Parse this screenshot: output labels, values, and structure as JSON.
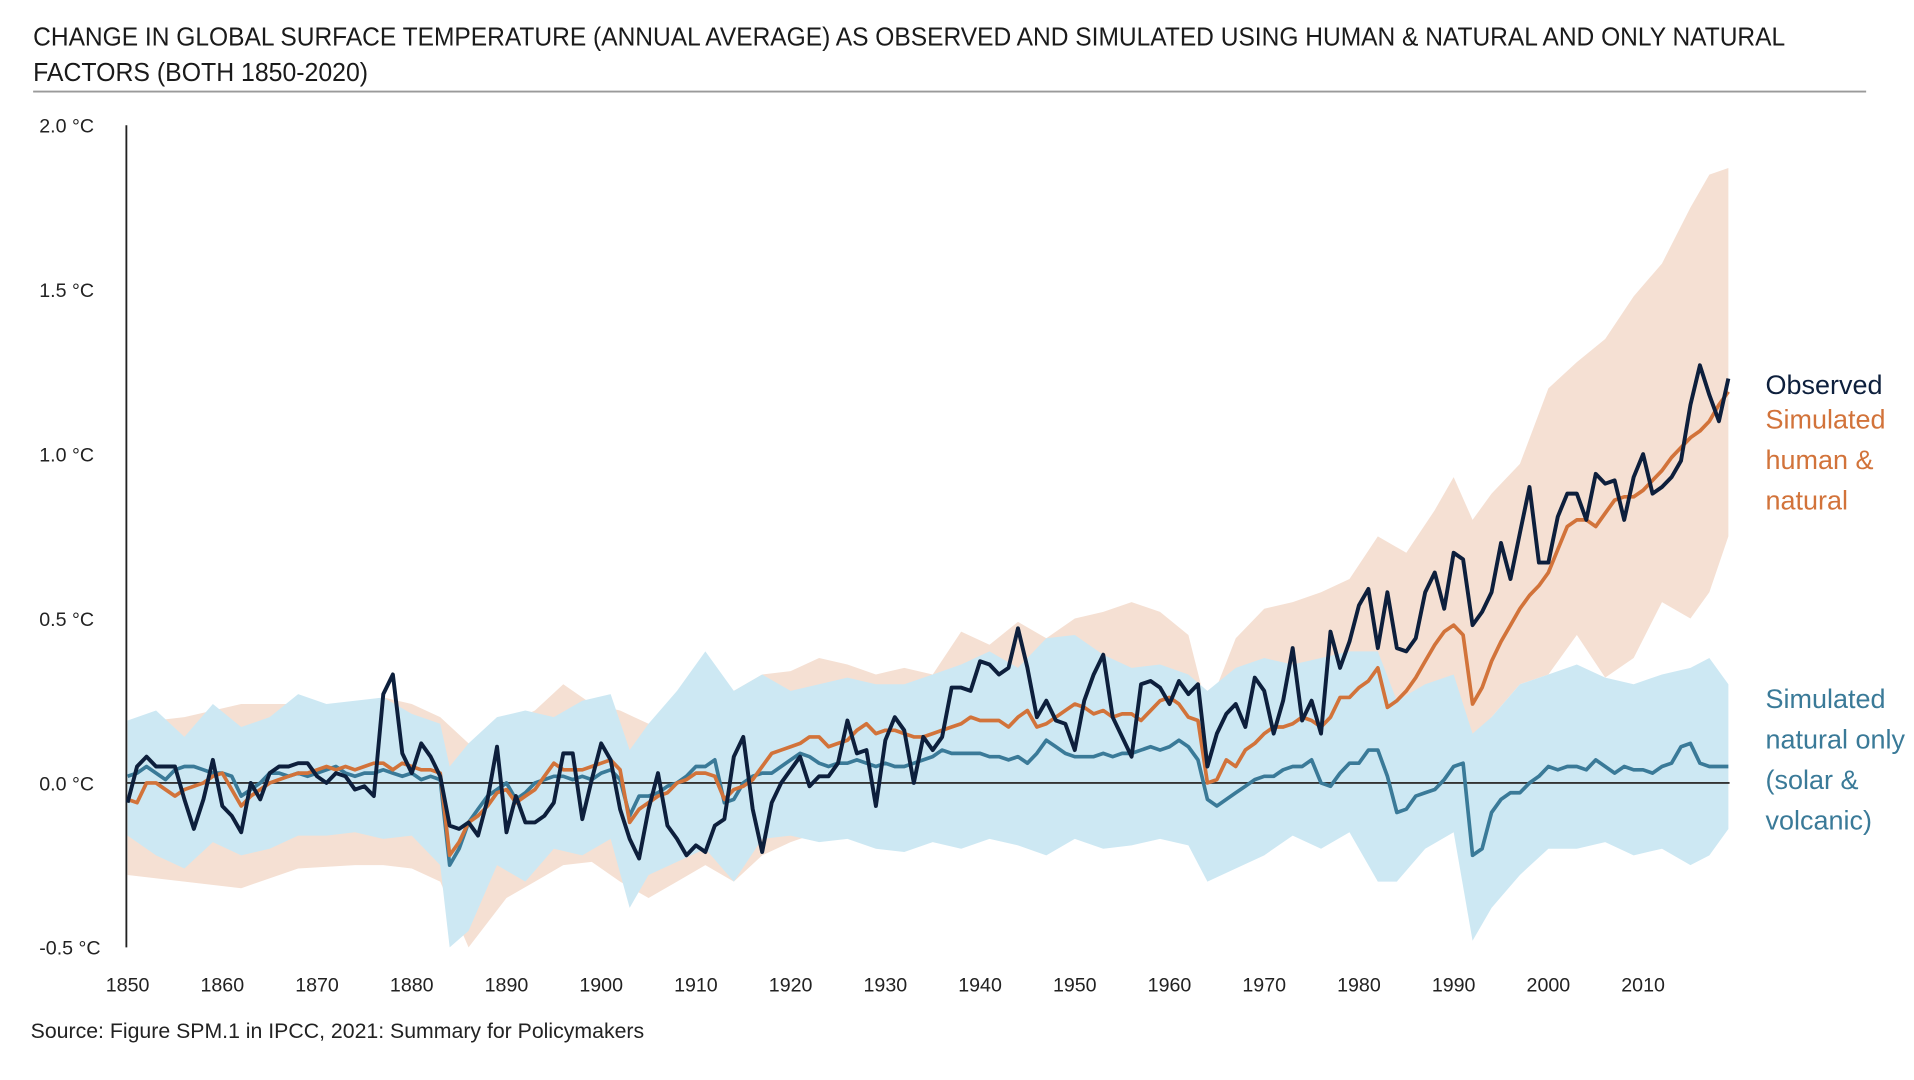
{
  "chart_data": {
    "type": "line",
    "title": [
      "CHANGE IN GLOBAL SURFACE TEMPERATURE (ANNUAL AVERAGE) AS OBSERVED AND SIMULATED USING HUMAN & NATURAL AND ONLY NATURAL",
      "FACTORS (BOTH 1850-2020)"
    ],
    "source": "Source: Figure SPM.1 in IPCC, 2021: Summary for Policymakers",
    "xlim": [
      1850,
      2019
    ],
    "ylim": [
      -0.5,
      2.0
    ],
    "x_ticks": [
      1850,
      1860,
      1870,
      1880,
      1890,
      1900,
      1910,
      1920,
      1930,
      1940,
      1950,
      1960,
      1970,
      1980,
      1990,
      2000,
      2010
    ],
    "y_ticks": [
      {
        "value": 2.0,
        "label": "2.0 °C"
      },
      {
        "value": 1.5,
        "label": "1.5 °C"
      },
      {
        "value": 1.0,
        "label": "1.0 °C"
      },
      {
        "value": 0.5,
        "label": "0.5 °C"
      },
      {
        "value": 0.0,
        "label": "0.0 °C"
      },
      {
        "value": -0.5,
        "label": "-0.5 °C"
      }
    ],
    "grid": false,
    "zero_line": true,
    "legend_placement": "right",
    "start_year": 1850,
    "series": [
      {
        "name": "Observed",
        "legend": [
          "Observed"
        ],
        "color": "#0d1f3c",
        "values": [
          -0.06,
          0.05,
          0.08,
          0.05,
          0.05,
          0.05,
          -0.05,
          -0.14,
          -0.05,
          0.07,
          -0.07,
          -0.1,
          -0.15,
          0.0,
          -0.05,
          0.03,
          0.05,
          0.05,
          0.06,
          0.06,
          0.02,
          0.0,
          0.03,
          0.02,
          -0.02,
          -0.01,
          -0.04,
          0.27,
          0.33,
          0.09,
          0.03,
          0.12,
          0.08,
          0.02,
          -0.13,
          -0.14,
          -0.12,
          -0.16,
          -0.05,
          0.11,
          -0.15,
          -0.04,
          -0.12,
          -0.12,
          -0.1,
          -0.06,
          0.09,
          0.09,
          -0.11,
          0.01,
          0.12,
          0.07,
          -0.08,
          -0.17,
          -0.23,
          -0.08,
          0.03,
          -0.13,
          -0.17,
          -0.22,
          -0.19,
          -0.21,
          -0.13,
          -0.11,
          0.08,
          0.14,
          -0.08,
          -0.21,
          -0.06,
          0.0,
          0.04,
          0.08,
          -0.01,
          0.02,
          0.02,
          0.06,
          0.19,
          0.09,
          0.1,
          -0.07,
          0.13,
          0.2,
          0.16,
          0.0,
          0.14,
          0.1,
          0.14,
          0.29,
          0.29,
          0.28,
          0.37,
          0.36,
          0.33,
          0.35,
          0.47,
          0.35,
          0.2,
          0.25,
          0.19,
          0.18,
          0.1,
          0.25,
          0.33,
          0.39,
          0.2,
          0.14,
          0.08,
          0.3,
          0.31,
          0.29,
          0.24,
          0.31,
          0.27,
          0.3,
          0.05,
          0.15,
          0.21,
          0.24,
          0.17,
          0.32,
          0.28,
          0.15,
          0.25,
          0.41,
          0.19,
          0.25,
          0.15,
          0.46,
          0.35,
          0.43,
          0.54,
          0.59,
          0.41,
          0.58,
          0.41,
          0.4,
          0.44,
          0.58,
          0.64,
          0.53,
          0.7,
          0.68,
          0.48,
          0.52,
          0.58,
          0.73,
          0.62,
          0.76,
          0.9,
          0.67,
          0.67,
          0.81,
          0.88,
          0.88,
          0.8,
          0.94,
          0.91,
          0.92,
          0.8,
          0.93,
          1.0,
          0.88,
          0.9,
          0.93,
          0.98,
          1.15,
          1.27,
          1.18,
          1.1,
          1.23
        ]
      },
      {
        "name": "Simulated human & natural",
        "legend": [
          "Simulated",
          "human &",
          "natural"
        ],
        "color": "#d2733a",
        "band_color": "#f5e0d3",
        "values": [
          -0.05,
          -0.06,
          0.0,
          0.0,
          -0.02,
          -0.04,
          -0.02,
          -0.01,
          0.0,
          0.02,
          0.03,
          -0.02,
          -0.07,
          -0.04,
          -0.02,
          0.0,
          0.01,
          0.02,
          0.03,
          0.03,
          0.04,
          0.05,
          0.04,
          0.05,
          0.04,
          0.05,
          0.06,
          0.06,
          0.04,
          0.06,
          0.05,
          0.04,
          0.04,
          0.03,
          -0.22,
          -0.18,
          -0.12,
          -0.1,
          -0.07,
          -0.03,
          -0.02,
          -0.06,
          -0.04,
          -0.02,
          0.02,
          0.06,
          0.04,
          0.04,
          0.04,
          0.05,
          0.06,
          0.07,
          0.04,
          -0.12,
          -0.08,
          -0.06,
          -0.04,
          -0.03,
          0.0,
          0.01,
          0.03,
          0.03,
          0.02,
          -0.05,
          -0.02,
          -0.01,
          0.01,
          0.05,
          0.09,
          0.1,
          0.11,
          0.12,
          0.14,
          0.14,
          0.11,
          0.12,
          0.13,
          0.16,
          0.18,
          0.15,
          0.16,
          0.16,
          0.15,
          0.14,
          0.14,
          0.15,
          0.16,
          0.17,
          0.18,
          0.2,
          0.19,
          0.19,
          0.19,
          0.17,
          0.2,
          0.22,
          0.17,
          0.18,
          0.2,
          0.22,
          0.24,
          0.23,
          0.21,
          0.22,
          0.2,
          0.21,
          0.21,
          0.19,
          0.22,
          0.25,
          0.26,
          0.24,
          0.2,
          0.19,
          0.0,
          0.01,
          0.07,
          0.05,
          0.1,
          0.12,
          0.15,
          0.17,
          0.17,
          0.18,
          0.2,
          0.19,
          0.17,
          0.2,
          0.26,
          0.26,
          0.29,
          0.31,
          0.35,
          0.23,
          0.25,
          0.28,
          0.32,
          0.37,
          0.42,
          0.46,
          0.48,
          0.45,
          0.24,
          0.29,
          0.37,
          0.43,
          0.48,
          0.53,
          0.57,
          0.6,
          0.64,
          0.71,
          0.78,
          0.8,
          0.8,
          0.78,
          0.82,
          0.86,
          0.87,
          0.87,
          0.89,
          0.92,
          0.95,
          0.99,
          1.02,
          1.05,
          1.07,
          1.1,
          1.15,
          1.19
        ],
        "band": {
          "x": [
            1850,
            1856,
            1862,
            1868,
            1874,
            1877,
            1880,
            1883,
            1886,
            1890,
            1893,
            1896,
            1899,
            1902,
            1905,
            1908,
            1911,
            1914,
            1917,
            1920,
            1923,
            1926,
            1929,
            1932,
            1935,
            1938,
            1941,
            1944,
            1947,
            1950,
            1953,
            1956,
            1959,
            1962,
            1964,
            1967,
            1970,
            1973,
            1976,
            1979,
            1982,
            1985,
            1988,
            1990,
            1992,
            1994,
            1997,
            2000,
            2003,
            2006,
            2009,
            2012,
            2015,
            2017,
            2019
          ],
          "upper": [
            0.18,
            0.2,
            0.24,
            0.24,
            0.23,
            0.26,
            0.24,
            0.2,
            0.12,
            0.18,
            0.22,
            0.3,
            0.24,
            0.22,
            0.18,
            0.26,
            0.26,
            0.28,
            0.33,
            0.34,
            0.38,
            0.36,
            0.33,
            0.35,
            0.33,
            0.46,
            0.42,
            0.49,
            0.44,
            0.5,
            0.52,
            0.55,
            0.52,
            0.45,
            0.22,
            0.44,
            0.53,
            0.55,
            0.58,
            0.62,
            0.75,
            0.7,
            0.83,
            0.93,
            0.8,
            0.88,
            0.97,
            1.2,
            1.28,
            1.35,
            1.48,
            1.58,
            1.75,
            1.85,
            1.87
          ],
          "lower": [
            -0.28,
            -0.3,
            -0.32,
            -0.26,
            -0.25,
            -0.25,
            -0.26,
            -0.3,
            -0.5,
            -0.35,
            -0.3,
            -0.25,
            -0.24,
            -0.3,
            -0.35,
            -0.3,
            -0.25,
            -0.3,
            -0.22,
            -0.18,
            -0.15,
            -0.12,
            -0.12,
            -0.12,
            -0.1,
            -0.08,
            -0.08,
            -0.08,
            -0.08,
            -0.05,
            -0.05,
            -0.05,
            -0.05,
            -0.08,
            -0.3,
            -0.2,
            -0.12,
            -0.1,
            -0.1,
            -0.05,
            0.0,
            0.02,
            0.15,
            0.2,
            0.12,
            0.2,
            0.3,
            0.33,
            0.45,
            0.32,
            0.38,
            0.55,
            0.5,
            0.58,
            0.75
          ]
        }
      },
      {
        "name": "Simulated natural only (solar & volcanic)",
        "legend": [
          "Simulated",
          "natural only",
          "(solar &",
          "volcanic)"
        ],
        "color": "#3a7a98",
        "band_color": "#cde8f3",
        "values": [
          0.02,
          0.03,
          0.05,
          0.03,
          0.01,
          0.04,
          0.05,
          0.05,
          0.04,
          0.03,
          0.03,
          0.02,
          -0.04,
          -0.02,
          0.0,
          0.03,
          0.03,
          0.02,
          0.03,
          0.02,
          0.03,
          0.04,
          0.05,
          0.03,
          0.02,
          0.03,
          0.03,
          0.04,
          0.03,
          0.02,
          0.03,
          0.01,
          0.02,
          0.01,
          -0.25,
          -0.2,
          -0.12,
          -0.08,
          -0.04,
          -0.02,
          0.0,
          -0.05,
          -0.03,
          0.0,
          0.01,
          0.02,
          0.02,
          0.01,
          0.02,
          0.01,
          0.03,
          0.04,
          0.01,
          -0.1,
          -0.04,
          -0.04,
          -0.03,
          -0.01,
          0.0,
          0.02,
          0.05,
          0.05,
          0.07,
          -0.06,
          -0.05,
          0.0,
          0.02,
          0.03,
          0.03,
          0.05,
          0.07,
          0.09,
          0.08,
          0.06,
          0.05,
          0.06,
          0.06,
          0.07,
          0.06,
          0.05,
          0.06,
          0.05,
          0.05,
          0.06,
          0.07,
          0.08,
          0.1,
          0.09,
          0.09,
          0.09,
          0.09,
          0.08,
          0.08,
          0.07,
          0.08,
          0.06,
          0.09,
          0.13,
          0.11,
          0.09,
          0.08,
          0.08,
          0.08,
          0.09,
          0.08,
          0.09,
          0.09,
          0.1,
          0.11,
          0.1,
          0.11,
          0.13,
          0.11,
          0.07,
          -0.05,
          -0.07,
          -0.05,
          -0.03,
          -0.01,
          0.01,
          0.02,
          0.02,
          0.04,
          0.05,
          0.05,
          0.07,
          0.0,
          -0.01,
          0.03,
          0.06,
          0.06,
          0.1,
          0.1,
          0.02,
          -0.09,
          -0.08,
          -0.04,
          -0.03,
          -0.02,
          0.01,
          0.05,
          0.06,
          -0.22,
          -0.2,
          -0.09,
          -0.05,
          -0.03,
          -0.03,
          0.0,
          0.02,
          0.05,
          0.04,
          0.05,
          0.05,
          0.04,
          0.07,
          0.05,
          0.03,
          0.05,
          0.04,
          0.04,
          0.03,
          0.05,
          0.06,
          0.11,
          0.12,
          0.06,
          0.05,
          0.05,
          0.05
        ],
        "band": {
          "x": [
            1850,
            1853,
            1856,
            1859,
            1862,
            1865,
            1868,
            1871,
            1874,
            1877,
            1880,
            1883,
            1884,
            1886,
            1889,
            1892,
            1895,
            1898,
            1901,
            1903,
            1905,
            1908,
            1911,
            1914,
            1917,
            1920,
            1923,
            1926,
            1929,
            1932,
            1935,
            1938,
            1941,
            1944,
            1947,
            1950,
            1953,
            1956,
            1959,
            1962,
            1964,
            1967,
            1970,
            1973,
            1976,
            1979,
            1982,
            1984,
            1987,
            1990,
            1992,
            1994,
            1997,
            2000,
            2003,
            2006,
            2009,
            2012,
            2015,
            2017,
            2019
          ],
          "upper": [
            0.19,
            0.22,
            0.14,
            0.24,
            0.17,
            0.2,
            0.27,
            0.24,
            0.25,
            0.26,
            0.21,
            0.18,
            0.05,
            0.12,
            0.2,
            0.22,
            0.2,
            0.25,
            0.27,
            0.1,
            0.18,
            0.28,
            0.4,
            0.28,
            0.33,
            0.28,
            0.3,
            0.32,
            0.3,
            0.3,
            0.33,
            0.36,
            0.4,
            0.35,
            0.44,
            0.45,
            0.39,
            0.35,
            0.36,
            0.33,
            0.28,
            0.35,
            0.38,
            0.36,
            0.38,
            0.4,
            0.4,
            0.25,
            0.3,
            0.33,
            0.15,
            0.2,
            0.3,
            0.33,
            0.36,
            0.32,
            0.3,
            0.33,
            0.35,
            0.38,
            0.3
          ],
          "lower": [
            -0.16,
            -0.22,
            -0.26,
            -0.18,
            -0.22,
            -0.2,
            -0.16,
            -0.16,
            -0.15,
            -0.17,
            -0.16,
            -0.25,
            -0.5,
            -0.45,
            -0.25,
            -0.3,
            -0.2,
            -0.22,
            -0.17,
            -0.38,
            -0.28,
            -0.24,
            -0.2,
            -0.3,
            -0.17,
            -0.16,
            -0.18,
            -0.17,
            -0.2,
            -0.21,
            -0.18,
            -0.2,
            -0.17,
            -0.19,
            -0.22,
            -0.17,
            -0.2,
            -0.19,
            -0.17,
            -0.19,
            -0.3,
            -0.26,
            -0.22,
            -0.16,
            -0.2,
            -0.15,
            -0.3,
            -0.3,
            -0.2,
            -0.15,
            -0.48,
            -0.38,
            -0.28,
            -0.2,
            -0.2,
            -0.18,
            -0.22,
            -0.2,
            -0.25,
            -0.22,
            -0.14
          ]
        }
      }
    ]
  }
}
